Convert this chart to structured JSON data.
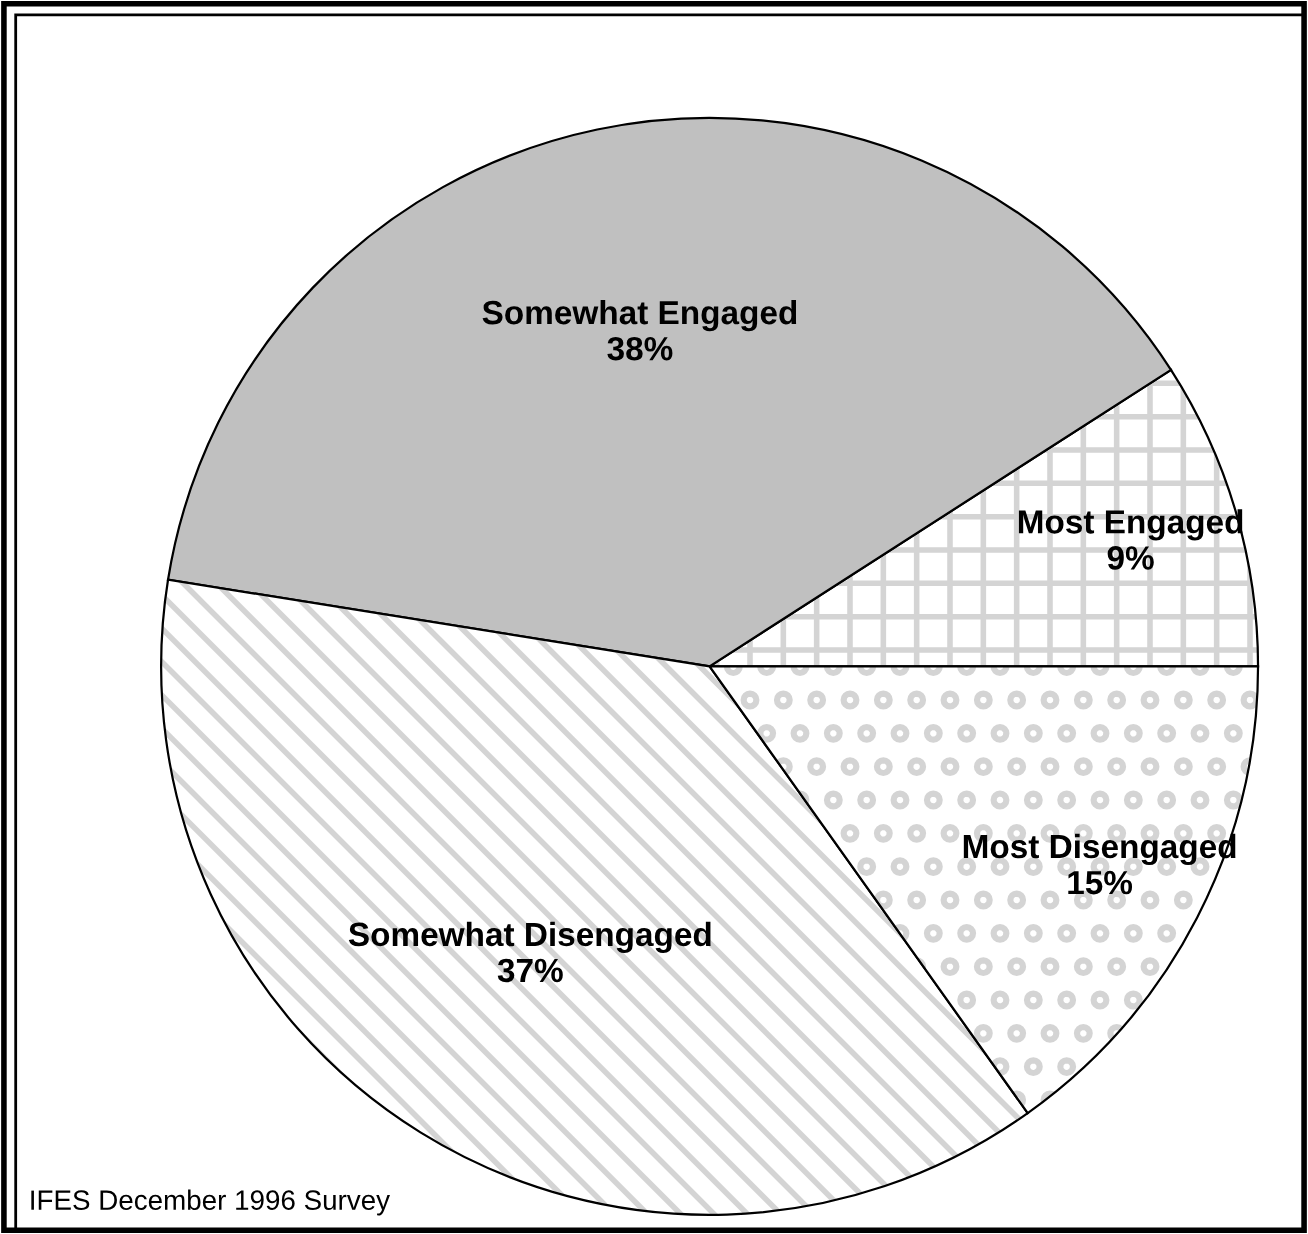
{
  "chart_data": {
    "type": "pie",
    "categories": [
      "Most Engaged",
      "Somewhat Engaged",
      "Somewhat Disengaged",
      "Most Disengaged"
    ],
    "values": [
      9,
      38,
      37,
      15
    ],
    "value_labels": [
      "9%",
      "38%",
      "37%",
      "15%"
    ],
    "colors": [
      "#ffffff",
      "#c0c0c0",
      "#ffffff",
      "#ffffff"
    ],
    "annotations": [
      "IFES December 1996 Survey"
    ],
    "legend": false
  }
}
